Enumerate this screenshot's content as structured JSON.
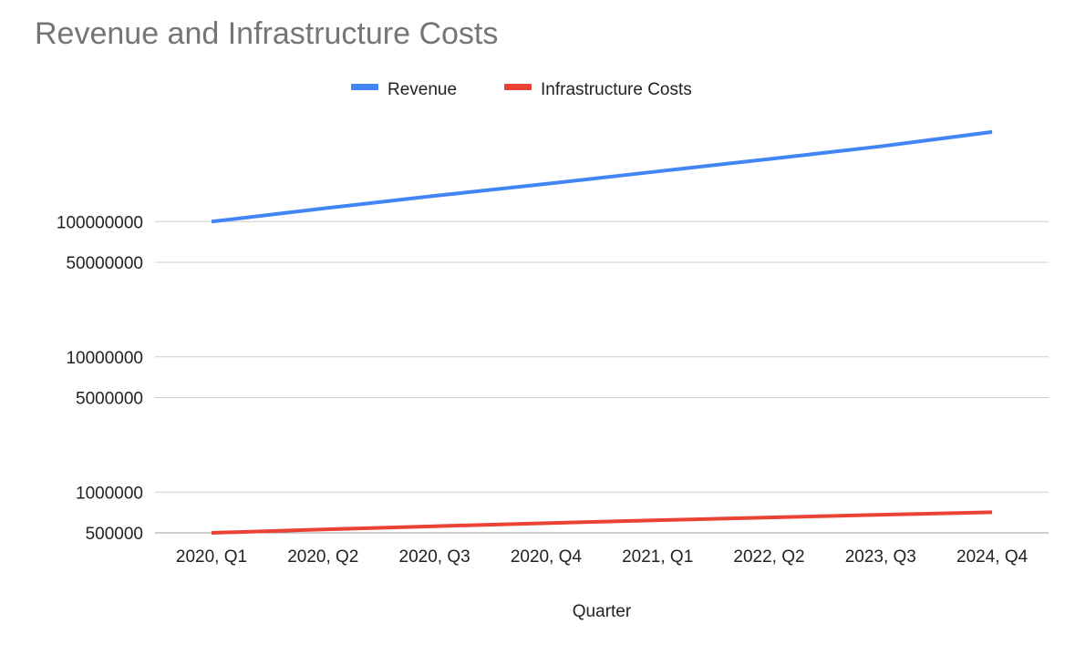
{
  "chart_data": {
    "type": "line",
    "title": "Revenue and Infrastructure Costs",
    "xlabel": "Quarter",
    "ylabel": "",
    "yscale": "log",
    "ylim": [
      500000,
      500000000
    ],
    "yticks": [
      500000,
      1000000,
      5000000,
      10000000,
      50000000,
      100000000
    ],
    "ytick_labels": [
      "500000",
      "1000000",
      "5000000",
      "10000000",
      "50000000",
      "100000000"
    ],
    "grid": true,
    "legend": "top",
    "categories": [
      "2020, Q1",
      "2020, Q2",
      "2020, Q3",
      "2020, Q4",
      "2021, Q1",
      "2022, Q2",
      "2023, Q3",
      "2024, Q4"
    ],
    "series": [
      {
        "name": "Revenue",
        "color": "#4285f4",
        "values": [
          100000000,
          125000000,
          155000000,
          190000000,
          235000000,
          290000000,
          360000000,
          460000000
        ]
      },
      {
        "name": "Infrastructure Costs",
        "color": "#ea4335",
        "values": [
          500000,
          530000,
          560000,
          590000,
          620000,
          650000,
          680000,
          710000
        ]
      }
    ]
  }
}
